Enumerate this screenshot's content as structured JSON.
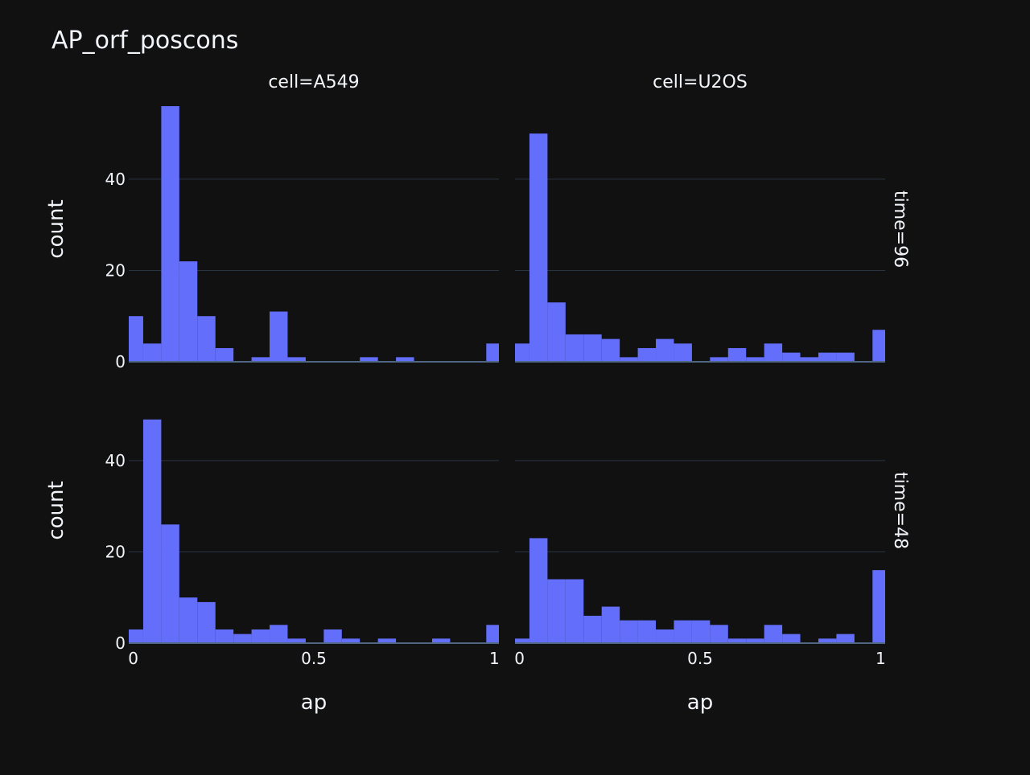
{
  "chart_data": {
    "type": "bar",
    "title": "AP_orf_poscons",
    "xlabel": "ap",
    "ylabel": "count",
    "xlim": [
      -0.0125,
      1.0125
    ],
    "ylim": [
      0,
      59
    ],
    "xticks": [
      0,
      0.5,
      1
    ],
    "xtick_labels": [
      "0",
      "0.5",
      "1"
    ],
    "yticks": [
      0,
      20,
      40
    ],
    "ytick_labels": [
      "0",
      "20",
      "40"
    ],
    "bin_width": 0.05,
    "bin_start": -0.0125,
    "grid": true,
    "bar_color": "#636efa",
    "background": "#111111",
    "grid_color": "#283442",
    "col_labels": [
      "cell=A549",
      "cell=U2OS"
    ],
    "row_labels": [
      "time=96",
      "time=48"
    ],
    "panels": [
      {
        "cell": "A549",
        "time": "96",
        "counts": [
          4,
          56,
          22,
          10,
          3,
          0,
          1,
          11,
          1,
          0,
          0,
          0,
          1,
          0,
          1,
          0,
          0,
          0,
          0,
          4
        ],
        "first_bin_count": 10
      },
      {
        "cell": "U2OS",
        "time": "96",
        "counts": [
          50,
          13,
          6,
          6,
          5,
          1,
          3,
          5,
          4,
          0,
          1,
          3,
          1,
          4,
          2,
          1,
          2,
          2,
          0,
          7
        ],
        "first_bin_count": 4
      },
      {
        "cell": "A549",
        "time": "48",
        "counts": [
          49,
          26,
          10,
          9,
          3,
          2,
          3,
          4,
          1,
          0,
          3,
          1,
          0,
          1,
          0,
          0,
          1,
          0,
          0,
          4
        ],
        "first_bin_count": 3
      },
      {
        "cell": "U2OS",
        "time": "48",
        "counts": [
          23,
          14,
          14,
          6,
          8,
          5,
          5,
          3,
          5,
          5,
          4,
          1,
          1,
          4,
          2,
          0,
          1,
          2,
          0,
          16
        ],
        "first_bin_count": 1
      }
    ]
  }
}
